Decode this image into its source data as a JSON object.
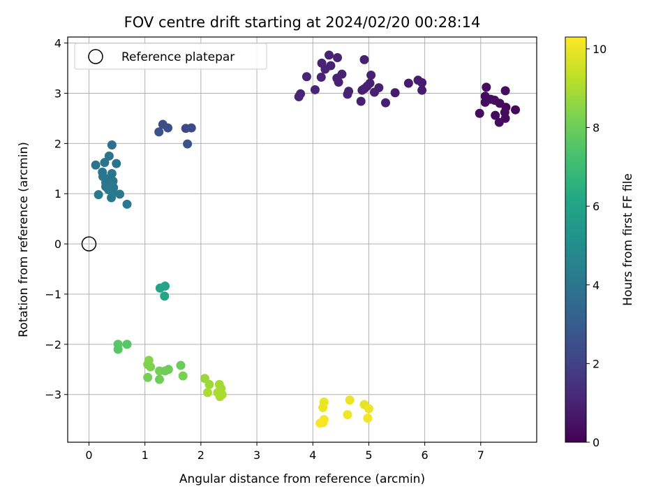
{
  "chart_data": {
    "type": "scatter",
    "title": "FOV centre drift starting at 2024/02/20 00:28:14",
    "xlabel": "Angular distance from reference (arcmin)",
    "ylabel": "Rotation from reference (arcmin)",
    "xlim": [
      -0.38,
      8.0
    ],
    "ylim": [
      -3.95,
      4.12
    ],
    "xticks": [
      0,
      1,
      2,
      3,
      4,
      5,
      6,
      7
    ],
    "yticks": [
      -3,
      -2,
      -1,
      0,
      1,
      2,
      3,
      4
    ],
    "xtick_labels": [
      "0",
      "1",
      "2",
      "3",
      "4",
      "5",
      "6",
      "7"
    ],
    "ytick_labels": [
      "−3",
      "−2",
      "−1",
      "0",
      "1",
      "2",
      "3",
      "4"
    ],
    "grid": true,
    "colormap": "viridis",
    "colorbar": {
      "label": "Hours from first FF file",
      "range": [
        0,
        10.3
      ],
      "ticks": [
        0,
        2,
        4,
        6,
        8,
        10
      ],
      "tick_labels": [
        "0",
        "2",
        "4",
        "6",
        "8",
        "10"
      ]
    },
    "legend": {
      "placement": "upper-left",
      "entries": [
        {
          "label": "Reference platepar",
          "marker": "open-circle",
          "color": "#000000"
        }
      ]
    },
    "reference_point": {
      "x": 0,
      "y": 0
    },
    "series": [
      {
        "points": [
          {
            "x": 7.1,
            "y": 3.12,
            "h": 0.3
          },
          {
            "x": 7.08,
            "y": 2.94,
            "h": 0.3
          },
          {
            "x": 7.18,
            "y": 2.88,
            "h": 0.3
          },
          {
            "x": 7.08,
            "y": 2.82,
            "h": 0.3
          },
          {
            "x": 7.25,
            "y": 2.86,
            "h": 0.3
          },
          {
            "x": 7.34,
            "y": 2.8,
            "h": 0.3
          },
          {
            "x": 7.44,
            "y": 3.05,
            "h": 0.3
          },
          {
            "x": 7.45,
            "y": 2.72,
            "h": 0.2
          },
          {
            "x": 7.62,
            "y": 2.67,
            "h": 0.2
          },
          {
            "x": 6.98,
            "y": 2.6,
            "h": 0.3
          },
          {
            "x": 7.26,
            "y": 2.56,
            "h": 0.3
          },
          {
            "x": 7.43,
            "y": 2.62,
            "h": 0.3
          },
          {
            "x": 7.44,
            "y": 2.5,
            "h": 0.3
          },
          {
            "x": 7.33,
            "y": 2.42,
            "h": 0.3
          },
          {
            "x": 4.92,
            "y": 3.67,
            "h": 0.9
          },
          {
            "x": 4.29,
            "y": 3.76,
            "h": 1.0
          },
          {
            "x": 4.44,
            "y": 3.71,
            "h": 1.0
          },
          {
            "x": 4.16,
            "y": 3.6,
            "h": 1.0
          },
          {
            "x": 4.22,
            "y": 3.48,
            "h": 1.0
          },
          {
            "x": 4.32,
            "y": 3.55,
            "h": 1.0
          },
          {
            "x": 3.89,
            "y": 3.33,
            "h": 1.1
          },
          {
            "x": 4.15,
            "y": 3.32,
            "h": 1.0
          },
          {
            "x": 4.43,
            "y": 3.3,
            "h": 1.0
          },
          {
            "x": 4.52,
            "y": 3.38,
            "h": 1.0
          },
          {
            "x": 4.46,
            "y": 3.22,
            "h": 1.0
          },
          {
            "x": 5.04,
            "y": 3.36,
            "h": 0.9
          },
          {
            "x": 5.02,
            "y": 3.2,
            "h": 0.9
          },
          {
            "x": 4.97,
            "y": 3.14,
            "h": 0.9
          },
          {
            "x": 5.18,
            "y": 3.11,
            "h": 0.9
          },
          {
            "x": 5.1,
            "y": 3.02,
            "h": 0.9
          },
          {
            "x": 4.88,
            "y": 3.06,
            "h": 0.9
          },
          {
            "x": 4.92,
            "y": 3.09,
            "h": 0.9
          },
          {
            "x": 4.64,
            "y": 3.04,
            "h": 1.0
          },
          {
            "x": 4.62,
            "y": 2.98,
            "h": 1.0
          },
          {
            "x": 4.04,
            "y": 3.07,
            "h": 1.1
          },
          {
            "x": 3.78,
            "y": 2.99,
            "h": 1.1
          },
          {
            "x": 3.75,
            "y": 2.93,
            "h": 1.1
          },
          {
            "x": 4.86,
            "y": 2.84,
            "h": 0.9
          },
          {
            "x": 5.3,
            "y": 2.81,
            "h": 0.9
          },
          {
            "x": 5.47,
            "y": 3.01,
            "h": 0.8
          },
          {
            "x": 5.71,
            "y": 3.2,
            "h": 0.8
          },
          {
            "x": 5.88,
            "y": 3.26,
            "h": 0.8
          },
          {
            "x": 5.95,
            "y": 3.21,
            "h": 0.8
          },
          {
            "x": 5.95,
            "y": 3.06,
            "h": 0.8
          },
          {
            "x": 1.32,
            "y": 2.38,
            "h": 2.4
          },
          {
            "x": 1.25,
            "y": 2.23,
            "h": 2.5
          },
          {
            "x": 1.41,
            "y": 2.31,
            "h": 2.4
          },
          {
            "x": 1.73,
            "y": 2.3,
            "h": 2.3
          },
          {
            "x": 1.83,
            "y": 2.31,
            "h": 2.3
          },
          {
            "x": 1.76,
            "y": 1.99,
            "h": 2.6
          },
          {
            "x": 0.41,
            "y": 1.97,
            "h": 3.8
          },
          {
            "x": 0.36,
            "y": 1.75,
            "h": 3.9
          },
          {
            "x": 0.12,
            "y": 1.57,
            "h": 3.9
          },
          {
            "x": 0.28,
            "y": 1.62,
            "h": 3.9
          },
          {
            "x": 0.49,
            "y": 1.6,
            "h": 3.9
          },
          {
            "x": 0.24,
            "y": 1.43,
            "h": 4.0
          },
          {
            "x": 0.41,
            "y": 1.4,
            "h": 4.0
          },
          {
            "x": 0.25,
            "y": 1.34,
            "h": 4.0
          },
          {
            "x": 0.36,
            "y": 1.3,
            "h": 4.0
          },
          {
            "x": 0.43,
            "y": 1.25,
            "h": 4.0
          },
          {
            "x": 0.3,
            "y": 1.22,
            "h": 4.0
          },
          {
            "x": 0.38,
            "y": 1.18,
            "h": 4.1
          },
          {
            "x": 0.3,
            "y": 1.14,
            "h": 4.0
          },
          {
            "x": 0.44,
            "y": 1.12,
            "h": 4.1
          },
          {
            "x": 0.35,
            "y": 1.08,
            "h": 4.1
          },
          {
            "x": 0.42,
            "y": 1.02,
            "h": 4.1
          },
          {
            "x": 0.55,
            "y": 0.99,
            "h": 4.1
          },
          {
            "x": 0.17,
            "y": 0.98,
            "h": 4.1
          },
          {
            "x": 0.4,
            "y": 0.92,
            "h": 4.1
          },
          {
            "x": 0.68,
            "y": 0.79,
            "h": 4.2
          },
          {
            "x": 1.27,
            "y": -0.88,
            "h": 6.0
          },
          {
            "x": 1.36,
            "y": -0.84,
            "h": 6.0
          },
          {
            "x": 1.35,
            "y": -1.04,
            "h": 6.0
          },
          {
            "x": 0.52,
            "y": -2.0,
            "h": 7.6
          },
          {
            "x": 0.68,
            "y": -2.0,
            "h": 7.6
          },
          {
            "x": 0.52,
            "y": -2.1,
            "h": 7.6
          },
          {
            "x": 1.07,
            "y": -2.32,
            "h": 8.4
          },
          {
            "x": 1.05,
            "y": -2.4,
            "h": 8.3
          },
          {
            "x": 1.1,
            "y": -2.45,
            "h": 8.3
          },
          {
            "x": 1.26,
            "y": -2.53,
            "h": 8.1
          },
          {
            "x": 1.36,
            "y": -2.53,
            "h": 8.0
          },
          {
            "x": 1.42,
            "y": -2.5,
            "h": 8.0
          },
          {
            "x": 1.64,
            "y": -2.42,
            "h": 7.9
          },
          {
            "x": 1.05,
            "y": -2.66,
            "h": 8.1
          },
          {
            "x": 1.26,
            "y": -2.7,
            "h": 8.0
          },
          {
            "x": 1.68,
            "y": -2.63,
            "h": 8.2
          },
          {
            "x": 2.07,
            "y": -2.68,
            "h": 8.7
          },
          {
            "x": 2.15,
            "y": -2.8,
            "h": 8.8
          },
          {
            "x": 2.33,
            "y": -2.8,
            "h": 8.9
          },
          {
            "x": 2.36,
            "y": -2.88,
            "h": 8.9
          },
          {
            "x": 2.12,
            "y": -2.96,
            "h": 9.0
          },
          {
            "x": 2.3,
            "y": -2.96,
            "h": 9.0
          },
          {
            "x": 2.38,
            "y": -3.0,
            "h": 9.0
          },
          {
            "x": 2.34,
            "y": -3.04,
            "h": 9.0
          },
          {
            "x": 4.2,
            "y": -3.15,
            "h": 10.0
          },
          {
            "x": 4.18,
            "y": -3.26,
            "h": 10.0
          },
          {
            "x": 4.66,
            "y": -3.11,
            "h": 10.0
          },
          {
            "x": 4.92,
            "y": -3.2,
            "h": 9.9
          },
          {
            "x": 5.0,
            "y": -3.28,
            "h": 10.0
          },
          {
            "x": 4.62,
            "y": -3.4,
            "h": 10.1
          },
          {
            "x": 4.98,
            "y": -3.47,
            "h": 10.1
          },
          {
            "x": 4.2,
            "y": -3.5,
            "h": 10.1
          },
          {
            "x": 4.13,
            "y": -3.57,
            "h": 10.2
          },
          {
            "x": 4.18,
            "y": -3.56,
            "h": 10.2
          }
        ]
      }
    ]
  }
}
